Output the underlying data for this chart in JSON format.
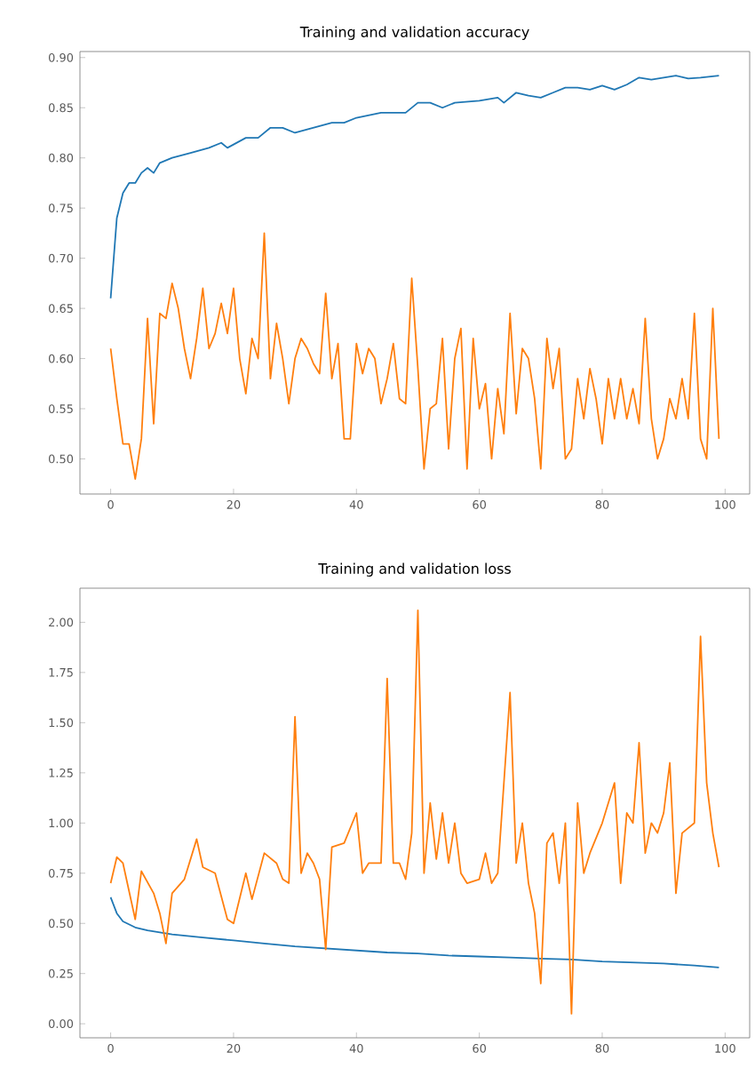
{
  "chart_data": [
    {
      "type": "line",
      "title": "Training and validation accuracy",
      "xlim": [
        -5,
        104
      ],
      "xticks": [
        0,
        20,
        40,
        60,
        80,
        100
      ],
      "ylim": [
        0.465,
        0.906
      ],
      "yticks": [
        {
          "value": 0.5,
          "label": "0.50"
        },
        {
          "value": 0.55,
          "label": "0.55"
        },
        {
          "value": 0.6,
          "label": "0.60"
        },
        {
          "value": 0.65,
          "label": "0.65"
        },
        {
          "value": 0.7,
          "label": "0.70"
        },
        {
          "value": 0.75,
          "label": "0.75"
        },
        {
          "value": 0.8,
          "label": "0.80"
        },
        {
          "value": 0.85,
          "label": "0.85"
        },
        {
          "value": 0.9,
          "label": "0.90"
        }
      ],
      "series": [
        {
          "color": "#1f77b4",
          "x": [
            0,
            1,
            2,
            3,
            4,
            5,
            6,
            7,
            8,
            10,
            13,
            16,
            18,
            19,
            22,
            24,
            26,
            28,
            30,
            33,
            36,
            38,
            40,
            44,
            48,
            50,
            52,
            54,
            56,
            60,
            63,
            64,
            66,
            68,
            70,
            72,
            74,
            76,
            78,
            80,
            82,
            84,
            86,
            88,
            90,
            92,
            94,
            96,
            99
          ],
          "values": [
            0.66,
            0.74,
            0.765,
            0.775,
            0.775,
            0.785,
            0.79,
            0.785,
            0.795,
            0.8,
            0.805,
            0.81,
            0.815,
            0.81,
            0.82,
            0.82,
            0.83,
            0.83,
            0.825,
            0.83,
            0.835,
            0.835,
            0.84,
            0.845,
            0.845,
            0.855,
            0.855,
            0.85,
            0.855,
            0.857,
            0.86,
            0.855,
            0.865,
            0.862,
            0.86,
            0.865,
            0.87,
            0.87,
            0.868,
            0.872,
            0.868,
            0.873,
            0.88,
            0.878,
            0.88,
            0.882,
            0.879,
            0.88,
            0.882
          ]
        },
        {
          "color": "#ff7f0e",
          "x": [
            0,
            1,
            2,
            3,
            4,
            5,
            6,
            7,
            8,
            9,
            10,
            11,
            12,
            13,
            14,
            15,
            16,
            17,
            18,
            19,
            20,
            21,
            22,
            23,
            24,
            25,
            26,
            27,
            28,
            29,
            30,
            31,
            32,
            33,
            34,
            35,
            36,
            37,
            38,
            39,
            40,
            41,
            42,
            43,
            44,
            45,
            46,
            47,
            48,
            49,
            50,
            51,
            52,
            53,
            54,
            55,
            56,
            57,
            58,
            59,
            60,
            61,
            62,
            63,
            64,
            65,
            66,
            67,
            68,
            69,
            70,
            71,
            72,
            73,
            74,
            75,
            76,
            77,
            78,
            79,
            80,
            81,
            82,
            83,
            84,
            85,
            86,
            87,
            88,
            89,
            90,
            91,
            92,
            93,
            94,
            95,
            96,
            97,
            98,
            99
          ],
          "values": [
            0.61,
            0.56,
            0.515,
            0.515,
            0.48,
            0.52,
            0.64,
            0.535,
            0.645,
            0.64,
            0.675,
            0.65,
            0.61,
            0.58,
            0.62,
            0.67,
            0.61,
            0.625,
            0.655,
            0.625,
            0.67,
            0.6,
            0.565,
            0.62,
            0.6,
            0.725,
            0.58,
            0.635,
            0.6,
            0.555,
            0.6,
            0.62,
            0.61,
            0.595,
            0.585,
            0.665,
            0.58,
            0.615,
            0.52,
            0.52,
            0.615,
            0.585,
            0.61,
            0.6,
            0.555,
            0.58,
            0.615,
            0.56,
            0.555,
            0.68,
            0.59,
            0.49,
            0.55,
            0.555,
            0.62,
            0.51,
            0.6,
            0.63,
            0.49,
            0.62,
            0.55,
            0.575,
            0.5,
            0.57,
            0.525,
            0.645,
            0.545,
            0.61,
            0.6,
            0.56,
            0.49,
            0.62,
            0.57,
            0.61,
            0.5,
            0.51,
            0.58,
            0.54,
            0.59,
            0.56,
            0.515,
            0.58,
            0.54,
            0.58,
            0.54,
            0.57,
            0.535,
            0.64,
            0.54,
            0.5,
            0.52,
            0.56,
            0.54,
            0.58,
            0.54,
            0.645,
            0.52,
            0.5,
            0.65,
            0.52
          ]
        }
      ]
    },
    {
      "type": "line",
      "title": "Training and validation loss",
      "xlim": [
        -5,
        104
      ],
      "xticks": [
        0,
        20,
        40,
        60,
        80,
        100
      ],
      "ylim": [
        -0.07,
        2.17
      ],
      "yticks": [
        {
          "value": 0,
          "label": "0.00"
        },
        {
          "value": 0.25,
          "label": "0.25"
        },
        {
          "value": 0.5,
          "label": "0.50"
        },
        {
          "value": 0.75,
          "label": "0.75"
        },
        {
          "value": 1,
          "label": "1.00"
        },
        {
          "value": 1.25,
          "label": "1.25"
        },
        {
          "value": 1.5,
          "label": "1.50"
        },
        {
          "value": 1.75,
          "label": "1.75"
        },
        {
          "value": 2,
          "label": "2.00"
        }
      ],
      "series": [
        {
          "color": "#1f77b4",
          "x": [
            0,
            1,
            2,
            4,
            6,
            10,
            15,
            20,
            25,
            30,
            35,
            40,
            45,
            50,
            55,
            60,
            65,
            70,
            75,
            80,
            85,
            90,
            95,
            99
          ],
          "values": [
            0.63,
            0.55,
            0.51,
            0.48,
            0.465,
            0.445,
            0.43,
            0.415,
            0.4,
            0.385,
            0.375,
            0.365,
            0.355,
            0.35,
            0.34,
            0.335,
            0.33,
            0.325,
            0.32,
            0.31,
            0.305,
            0.3,
            0.29,
            0.28
          ]
        },
        {
          "color": "#ff7f0e",
          "x": [
            0,
            1,
            2,
            4,
            5,
            7,
            8,
            9,
            10,
            12,
            14,
            15,
            17,
            19,
            20,
            22,
            23,
            25,
            27,
            28,
            29,
            30,
            31,
            32,
            33,
            34,
            35,
            36,
            38,
            40,
            41,
            42,
            44,
            45,
            46,
            47,
            48,
            49,
            50,
            51,
            52,
            53,
            54,
            55,
            56,
            57,
            58,
            60,
            61,
            62,
            63,
            65,
            66,
            67,
            68,
            69,
            70,
            71,
            72,
            73,
            74,
            75,
            76,
            77,
            78,
            80,
            82,
            83,
            84,
            85,
            86,
            87,
            88,
            89,
            90,
            91,
            92,
            93,
            95,
            96,
            97,
            98,
            99
          ],
          "values": [
            0.7,
            0.83,
            0.8,
            0.52,
            0.76,
            0.65,
            0.55,
            0.4,
            0.65,
            0.72,
            0.92,
            0.78,
            0.75,
            0.52,
            0.5,
            0.75,
            0.62,
            0.85,
            0.8,
            0.72,
            0.7,
            1.53,
            0.75,
            0.85,
            0.8,
            0.72,
            0.37,
            0.88,
            0.9,
            1.05,
            0.75,
            0.8,
            0.8,
            1.72,
            0.8,
            0.8,
            0.72,
            0.95,
            2.06,
            0.75,
            1.1,
            0.82,
            1.05,
            0.8,
            1.0,
            0.75,
            0.7,
            0.72,
            0.85,
            0.7,
            0.75,
            1.65,
            0.8,
            1.0,
            0.7,
            0.55,
            0.2,
            0.9,
            0.95,
            0.7,
            1.0,
            0.05,
            1.1,
            0.75,
            0.85,
            1.0,
            1.2,
            0.7,
            1.05,
            1.0,
            1.4,
            0.85,
            1.0,
            0.95,
            1.05,
            1.3,
            0.65,
            0.95,
            1.0,
            1.93,
            1.2,
            0.95,
            0.78
          ]
        }
      ]
    }
  ]
}
